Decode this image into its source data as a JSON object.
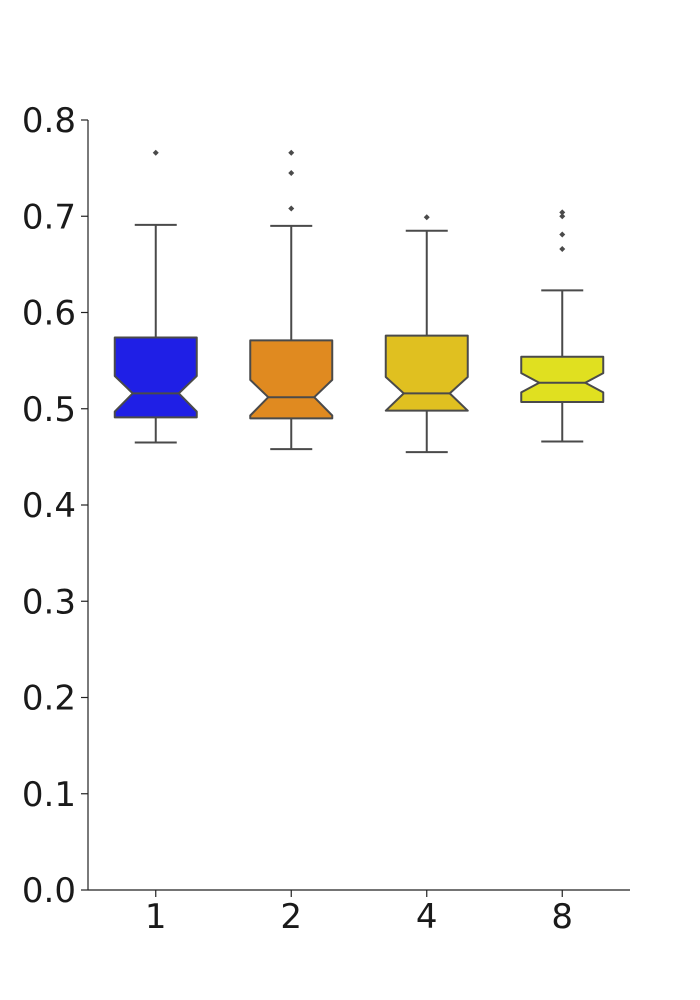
{
  "chart_data": {
    "type": "boxplot",
    "notched": true,
    "categories": [
      "1",
      "2",
      "4",
      "8"
    ],
    "ylim": [
      0.0,
      0.8
    ],
    "yticks": [
      "0.0",
      "0.1",
      "0.2",
      "0.3",
      "0.4",
      "0.5",
      "0.6",
      "0.7",
      "0.8"
    ],
    "boxes": [
      {
        "category": "1",
        "color": "#1f1fe6",
        "whislo": 0.465,
        "q1": 0.491,
        "notch_lo": 0.497,
        "med": 0.516,
        "notch_hi": 0.534,
        "q3": 0.574,
        "whishi": 0.691,
        "fliers": [
          0.766
        ]
      },
      {
        "category": "2",
        "color": "#e08a20",
        "whislo": 0.458,
        "q1": 0.49,
        "notch_lo": 0.493,
        "med": 0.512,
        "notch_hi": 0.53,
        "q3": 0.571,
        "whishi": 0.69,
        "fliers": [
          0.708,
          0.745,
          0.766
        ]
      },
      {
        "category": "4",
        "color": "#e0c020",
        "whislo": 0.455,
        "q1": 0.498,
        "notch_lo": 0.498,
        "med": 0.516,
        "notch_hi": 0.533,
        "q3": 0.576,
        "whishi": 0.685,
        "fliers": [
          0.699
        ]
      },
      {
        "category": "8",
        "color": "#e0e020",
        "whislo": 0.466,
        "q1": 0.507,
        "notch_lo": 0.517,
        "med": 0.527,
        "notch_hi": 0.537,
        "q3": 0.554,
        "whishi": 0.623,
        "fliers": [
          0.666,
          0.681,
          0.7,
          0.704
        ]
      }
    ],
    "title": "",
    "xlabel": "",
    "ylabel": "",
    "grid": false,
    "legend": "none"
  }
}
